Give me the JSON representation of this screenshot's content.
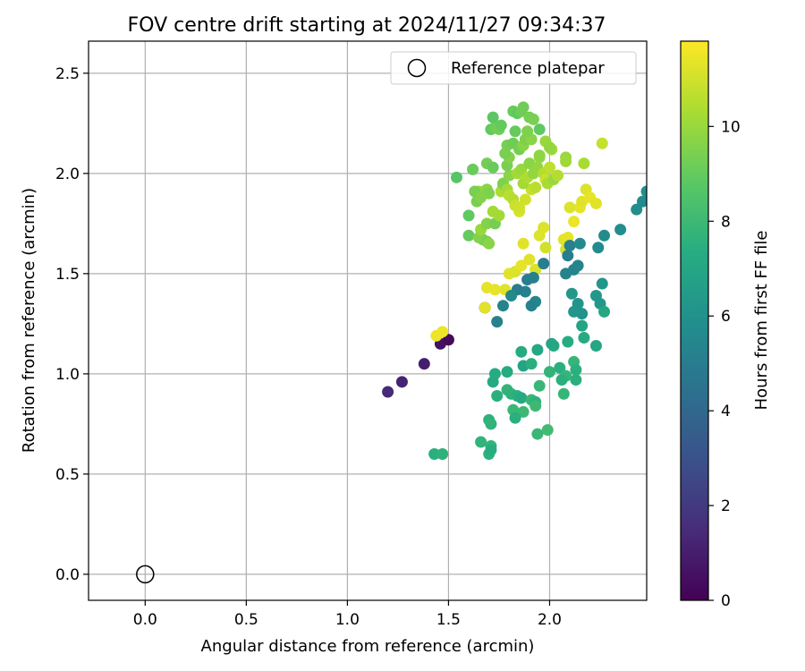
{
  "chart_data": {
    "type": "scatter",
    "title": "FOV centre drift starting at 2024/11/27 09:34:37",
    "xlabel": "Angular distance from reference (arcmin)",
    "ylabel": "Rotation from reference (arcmin)",
    "xlim": [
      -0.28,
      2.48
    ],
    "ylim": [
      -0.13,
      2.66
    ],
    "xticks": [
      "0.0",
      "0.5",
      "1.0",
      "1.5",
      "2.0"
    ],
    "yticks": [
      "0.0",
      "0.5",
      "1.0",
      "1.5",
      "2.0",
      "2.5"
    ],
    "grid": true,
    "legend": {
      "placement": "top-right",
      "entries": [
        "Reference platepar"
      ]
    },
    "reference_point": {
      "x": 0.0,
      "y": 0.0
    },
    "colorbar": {
      "label": "Hours from first FF file",
      "colormap": "viridis",
      "range": [
        0,
        11.8
      ],
      "ticks": [
        "0",
        "2",
        "4",
        "6",
        "8",
        "10"
      ]
    },
    "points": [
      {
        "x": 1.2,
        "y": 0.91,
        "t": 1.4
      },
      {
        "x": 1.27,
        "y": 0.96,
        "t": 1.2
      },
      {
        "x": 1.38,
        "y": 1.05,
        "t": 1.0
      },
      {
        "x": 1.46,
        "y": 1.15,
        "t": 0.6
      },
      {
        "x": 1.5,
        "y": 1.17,
        "t": 0.3
      },
      {
        "x": 1.68,
        "y": 1.33,
        "t": 0.1
      },
      {
        "x": 1.44,
        "y": 1.19,
        "t": 11.5
      },
      {
        "x": 1.47,
        "y": 1.21,
        "t": 11.5
      },
      {
        "x": 1.68,
        "y": 1.33,
        "t": 11.3
      },
      {
        "x": 1.69,
        "y": 1.43,
        "t": 11.4
      },
      {
        "x": 1.73,
        "y": 1.42,
        "t": 11.4
      },
      {
        "x": 1.78,
        "y": 1.42,
        "t": 11.3
      },
      {
        "x": 1.8,
        "y": 1.5,
        "t": 11.3
      },
      {
        "x": 1.83,
        "y": 1.51,
        "t": 11.2
      },
      {
        "x": 1.86,
        "y": 1.54,
        "t": 11.4
      },
      {
        "x": 1.9,
        "y": 1.57,
        "t": 11.3
      },
      {
        "x": 1.93,
        "y": 1.52,
        "t": 11.2
      },
      {
        "x": 1.87,
        "y": 1.65,
        "t": 11.3
      },
      {
        "x": 1.95,
        "y": 1.69,
        "t": 11.2
      },
      {
        "x": 1.97,
        "y": 1.73,
        "t": 11.2
      },
      {
        "x": 1.98,
        "y": 1.63,
        "t": 11.0
      },
      {
        "x": 2.07,
        "y": 1.67,
        "t": 11.3
      },
      {
        "x": 2.09,
        "y": 1.68,
        "t": 11.4
      },
      {
        "x": 2.1,
        "y": 1.83,
        "t": 11.2
      },
      {
        "x": 2.15,
        "y": 1.83,
        "t": 11.4
      },
      {
        "x": 2.16,
        "y": 1.86,
        "t": 11.3
      },
      {
        "x": 2.18,
        "y": 1.92,
        "t": 11.2
      },
      {
        "x": 2.2,
        "y": 1.88,
        "t": 11.4
      },
      {
        "x": 2.23,
        "y": 1.85,
        "t": 11.3
      },
      {
        "x": 2.12,
        "y": 1.76,
        "t": 11.5
      },
      {
        "x": 2.08,
        "y": 1.62,
        "t": 11.1
      },
      {
        "x": 1.85,
        "y": 1.81,
        "t": 11.1
      },
      {
        "x": 1.88,
        "y": 1.87,
        "t": 11.0
      },
      {
        "x": 1.91,
        "y": 1.92,
        "t": 10.8
      },
      {
        "x": 1.93,
        "y": 1.93,
        "t": 10.6
      },
      {
        "x": 2.09,
        "y": 1.59,
        "t": 5.0
      },
      {
        "x": 2.1,
        "y": 1.64,
        "t": 5.2
      },
      {
        "x": 2.15,
        "y": 1.65,
        "t": 5.6
      },
      {
        "x": 2.12,
        "y": 1.52,
        "t": 5.3
      },
      {
        "x": 2.14,
        "y": 1.54,
        "t": 5.4
      },
      {
        "x": 2.08,
        "y": 1.5,
        "t": 5.3
      },
      {
        "x": 2.24,
        "y": 1.63,
        "t": 5.6
      },
      {
        "x": 2.27,
        "y": 1.69,
        "t": 5.7
      },
      {
        "x": 2.35,
        "y": 1.72,
        "t": 5.8
      },
      {
        "x": 2.43,
        "y": 1.82,
        "t": 5.8
      },
      {
        "x": 2.46,
        "y": 1.86,
        "t": 5.7
      },
      {
        "x": 2.48,
        "y": 1.91,
        "t": 5.9
      },
      {
        "x": 1.97,
        "y": 1.55,
        "t": 5.0
      },
      {
        "x": 1.89,
        "y": 1.47,
        "t": 5.0
      },
      {
        "x": 1.92,
        "y": 1.48,
        "t": 5.2
      },
      {
        "x": 1.88,
        "y": 1.41,
        "t": 5.2
      },
      {
        "x": 1.84,
        "y": 1.42,
        "t": 5.0
      },
      {
        "x": 1.81,
        "y": 1.39,
        "t": 5.5
      },
      {
        "x": 1.77,
        "y": 1.34,
        "t": 5.3
      },
      {
        "x": 1.93,
        "y": 1.36,
        "t": 5.4
      },
      {
        "x": 1.91,
        "y": 1.34,
        "t": 5.2
      },
      {
        "x": 1.74,
        "y": 1.26,
        "t": 5.2
      },
      {
        "x": 2.14,
        "y": 1.35,
        "t": 6.1
      },
      {
        "x": 2.16,
        "y": 1.3,
        "t": 6.0
      },
      {
        "x": 2.12,
        "y": 1.31,
        "t": 6.2
      },
      {
        "x": 2.11,
        "y": 1.4,
        "t": 6.3
      },
      {
        "x": 2.26,
        "y": 1.45,
        "t": 6.2
      },
      {
        "x": 2.23,
        "y": 1.39,
        "t": 6.3
      },
      {
        "x": 2.25,
        "y": 1.35,
        "t": 6.3
      },
      {
        "x": 2.27,
        "y": 1.31,
        "t": 7.0
      },
      {
        "x": 2.16,
        "y": 1.24,
        "t": 6.9
      },
      {
        "x": 2.17,
        "y": 1.18,
        "t": 7.2
      },
      {
        "x": 2.23,
        "y": 1.14,
        "t": 7.0
      },
      {
        "x": 2.09,
        "y": 1.16,
        "t": 7.3
      },
      {
        "x": 2.02,
        "y": 1.14,
        "t": 7.2
      },
      {
        "x": 2.01,
        "y": 1.15,
        "t": 7.0
      },
      {
        "x": 1.94,
        "y": 1.12,
        "t": 7.0
      },
      {
        "x": 1.86,
        "y": 1.11,
        "t": 7.2
      },
      {
        "x": 1.87,
        "y": 1.04,
        "t": 6.9
      },
      {
        "x": 1.91,
        "y": 1.05,
        "t": 7.5
      },
      {
        "x": 2.0,
        "y": 1.01,
        "t": 7.7
      },
      {
        "x": 2.05,
        "y": 1.03,
        "t": 7.5
      },
      {
        "x": 2.12,
        "y": 1.06,
        "t": 7.8
      },
      {
        "x": 2.13,
        "y": 1.02,
        "t": 7.5
      },
      {
        "x": 2.13,
        "y": 0.97,
        "t": 7.5
      },
      {
        "x": 2.08,
        "y": 0.99,
        "t": 7.8
      },
      {
        "x": 2.06,
        "y": 0.97,
        "t": 7.5
      },
      {
        "x": 2.07,
        "y": 0.9,
        "t": 7.8
      },
      {
        "x": 1.79,
        "y": 1.01,
        "t": 7.2
      },
      {
        "x": 1.73,
        "y": 1.0,
        "t": 7.3
      },
      {
        "x": 1.72,
        "y": 0.96,
        "t": 7.2
      },
      {
        "x": 1.79,
        "y": 0.92,
        "t": 7.7
      },
      {
        "x": 1.81,
        "y": 0.9,
        "t": 7.6
      },
      {
        "x": 1.84,
        "y": 0.89,
        "t": 7.5
      },
      {
        "x": 1.74,
        "y": 0.89,
        "t": 7.5
      },
      {
        "x": 1.86,
        "y": 0.88,
        "t": 7.2
      },
      {
        "x": 1.91,
        "y": 0.87,
        "t": 7.9
      },
      {
        "x": 1.93,
        "y": 0.86,
        "t": 7.6
      },
      {
        "x": 1.93,
        "y": 0.84,
        "t": 8.0
      },
      {
        "x": 1.95,
        "y": 0.94,
        "t": 7.9
      },
      {
        "x": 1.82,
        "y": 0.82,
        "t": 7.9
      },
      {
        "x": 1.87,
        "y": 0.81,
        "t": 8.0
      },
      {
        "x": 1.83,
        "y": 0.78,
        "t": 7.5
      },
      {
        "x": 1.7,
        "y": 0.77,
        "t": 7.6
      },
      {
        "x": 1.71,
        "y": 0.75,
        "t": 7.7
      },
      {
        "x": 1.94,
        "y": 0.7,
        "t": 7.9
      },
      {
        "x": 1.99,
        "y": 0.72,
        "t": 8.1
      },
      {
        "x": 1.66,
        "y": 0.66,
        "t": 7.7
      },
      {
        "x": 1.71,
        "y": 0.64,
        "t": 7.7
      },
      {
        "x": 1.7,
        "y": 0.6,
        "t": 7.6
      },
      {
        "x": 1.71,
        "y": 0.62,
        "t": 7.4
      },
      {
        "x": 1.43,
        "y": 0.6,
        "t": 7.5
      },
      {
        "x": 1.47,
        "y": 0.6,
        "t": 7.6
      },
      {
        "x": 1.54,
        "y": 1.98,
        "t": 8.7
      },
      {
        "x": 1.62,
        "y": 2.02,
        "t": 9.1
      },
      {
        "x": 1.69,
        "y": 2.05,
        "t": 9.3
      },
      {
        "x": 1.6,
        "y": 1.79,
        "t": 8.9
      },
      {
        "x": 1.6,
        "y": 1.69,
        "t": 9.0
      },
      {
        "x": 1.67,
        "y": 1.67,
        "t": 9.1
      },
      {
        "x": 1.65,
        "y": 1.68,
        "t": 9.6
      },
      {
        "x": 1.69,
        "y": 1.66,
        "t": 9.4
      },
      {
        "x": 1.7,
        "y": 1.65,
        "t": 9.7
      },
      {
        "x": 1.66,
        "y": 1.72,
        "t": 10.0
      },
      {
        "x": 1.69,
        "y": 1.75,
        "t": 9.6
      },
      {
        "x": 1.73,
        "y": 1.75,
        "t": 9.3
      },
      {
        "x": 1.72,
        "y": 1.81,
        "t": 10.2
      },
      {
        "x": 1.75,
        "y": 1.79,
        "t": 10.2
      },
      {
        "x": 1.65,
        "y": 1.91,
        "t": 10.0
      },
      {
        "x": 1.69,
        "y": 1.92,
        "t": 9.7
      },
      {
        "x": 1.7,
        "y": 1.9,
        "t": 9.5
      },
      {
        "x": 1.76,
        "y": 1.91,
        "t": 10.4
      },
      {
        "x": 1.77,
        "y": 1.94,
        "t": 10.1
      },
      {
        "x": 1.77,
        "y": 1.95,
        "t": 9.5
      },
      {
        "x": 1.79,
        "y": 1.92,
        "t": 10.2
      },
      {
        "x": 1.8,
        "y": 1.89,
        "t": 10.6
      },
      {
        "x": 1.8,
        "y": 1.99,
        "t": 9.7
      },
      {
        "x": 1.82,
        "y": 1.87,
        "t": 10.5
      },
      {
        "x": 1.83,
        "y": 1.84,
        "t": 10.9
      },
      {
        "x": 1.85,
        "y": 1.83,
        "t": 11.0
      },
      {
        "x": 1.87,
        "y": 1.95,
        "t": 10.2
      },
      {
        "x": 1.84,
        "y": 2.0,
        "t": 10.2
      },
      {
        "x": 1.86,
        "y": 2.02,
        "t": 10.0
      },
      {
        "x": 1.89,
        "y": 1.98,
        "t": 10.4
      },
      {
        "x": 1.9,
        "y": 2.05,
        "t": 9.7
      },
      {
        "x": 1.92,
        "y": 2.0,
        "t": 9.9
      },
      {
        "x": 1.94,
        "y": 2.03,
        "t": 9.9
      },
      {
        "x": 1.95,
        "y": 2.08,
        "t": 9.9
      },
      {
        "x": 1.97,
        "y": 2.0,
        "t": 10.5
      },
      {
        "x": 1.98,
        "y": 1.97,
        "t": 10.9
      },
      {
        "x": 1.99,
        "y": 1.95,
        "t": 10.3
      },
      {
        "x": 2.0,
        "y": 2.03,
        "t": 10.7
      },
      {
        "x": 2.02,
        "y": 1.97,
        "t": 10.0
      },
      {
        "x": 2.04,
        "y": 1.99,
        "t": 10.5
      },
      {
        "x": 2.01,
        "y": 2.12,
        "t": 10.1
      },
      {
        "x": 2.08,
        "y": 2.08,
        "t": 10.0
      },
      {
        "x": 2.08,
        "y": 2.06,
        "t": 10.1
      },
      {
        "x": 2.17,
        "y": 2.05,
        "t": 10.3
      },
      {
        "x": 2.26,
        "y": 2.15,
        "t": 10.8
      },
      {
        "x": 1.79,
        "y": 2.04,
        "t": 9.4
      },
      {
        "x": 1.8,
        "y": 2.08,
        "t": 9.6
      },
      {
        "x": 1.79,
        "y": 2.14,
        "t": 9.3
      },
      {
        "x": 1.78,
        "y": 2.1,
        "t": 9.4
      },
      {
        "x": 1.82,
        "y": 2.15,
        "t": 9.2
      },
      {
        "x": 1.85,
        "y": 2.12,
        "t": 9.3
      },
      {
        "x": 1.87,
        "y": 2.14,
        "t": 9.7
      },
      {
        "x": 1.88,
        "y": 2.17,
        "t": 9.5
      },
      {
        "x": 1.91,
        "y": 2.17,
        "t": 9.7
      },
      {
        "x": 1.95,
        "y": 2.09,
        "t": 9.8
      },
      {
        "x": 1.98,
        "y": 2.16,
        "t": 10.0
      },
      {
        "x": 2.0,
        "y": 2.13,
        "t": 9.9
      },
      {
        "x": 1.71,
        "y": 2.22,
        "t": 8.9
      },
      {
        "x": 1.73,
        "y": 2.23,
        "t": 9.2
      },
      {
        "x": 1.75,
        "y": 2.22,
        "t": 9.3
      },
      {
        "x": 1.72,
        "y": 2.28,
        "t": 8.8
      },
      {
        "x": 1.76,
        "y": 2.24,
        "t": 9.0
      },
      {
        "x": 1.83,
        "y": 2.21,
        "t": 9.0
      },
      {
        "x": 1.82,
        "y": 2.31,
        "t": 9.1
      },
      {
        "x": 1.84,
        "y": 2.3,
        "t": 8.9
      },
      {
        "x": 1.86,
        "y": 2.31,
        "t": 9.2
      },
      {
        "x": 1.87,
        "y": 2.33,
        "t": 9.2
      },
      {
        "x": 1.9,
        "y": 2.28,
        "t": 9.3
      },
      {
        "x": 1.92,
        "y": 2.27,
        "t": 9.4
      },
      {
        "x": 1.95,
        "y": 2.22,
        "t": 8.9
      },
      {
        "x": 1.89,
        "y": 2.21,
        "t": 9.5
      },
      {
        "x": 1.72,
        "y": 2.03,
        "t": 9.1
      },
      {
        "x": 1.63,
        "y": 1.91,
        "t": 9.4
      },
      {
        "x": 1.64,
        "y": 1.86,
        "t": 9.4
      },
      {
        "x": 1.66,
        "y": 1.88,
        "t": 9.6
      }
    ]
  }
}
